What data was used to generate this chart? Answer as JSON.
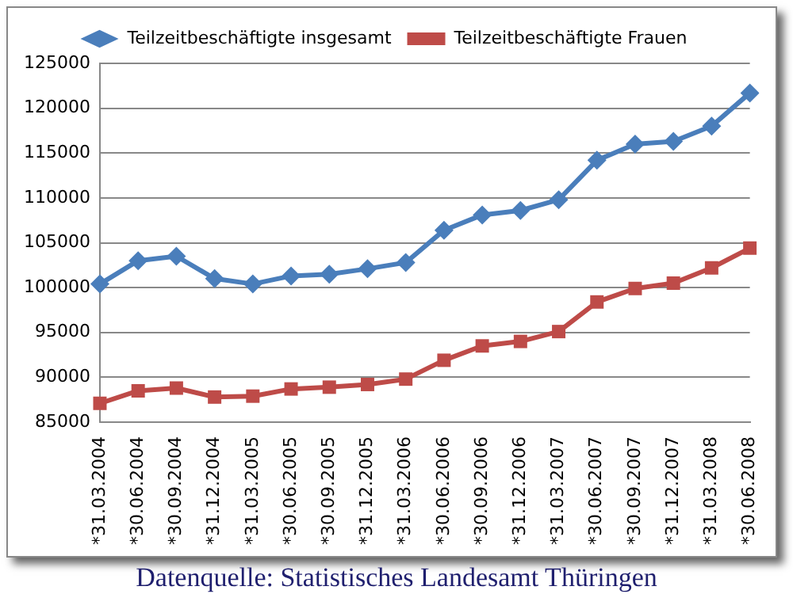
{
  "chart_data": {
    "type": "line",
    "categories": [
      "*31.03.2004",
      "*30.06.2004",
      "*30.09.2004",
      "*31.12.2004",
      "*31.03.2005",
      "*30.06.2005",
      "*30.09.2005",
      "*31.12.2005",
      "*31.03.2006",
      "*30.06.2006",
      "*30.09.2006",
      "*31.12.2006",
      "*31.03.2007",
      "*30.06.2007",
      "*30.09.2007",
      "*31.12.2007",
      "*31.03.2008",
      "*30.06.2008"
    ],
    "series": [
      {
        "name": "Teilzeitbeschäftigte insgesamt",
        "color": "#4a7ebb",
        "marker": "diamond",
        "values": [
          100400,
          103000,
          103500,
          101000,
          100400,
          101300,
          101500,
          102100,
          102800,
          106400,
          108100,
          108600,
          109800,
          114200,
          116000,
          116300,
          118000,
          121700
        ]
      },
      {
        "name": "Teilzeitbeschäftigte Frauen",
        "color": "#be4b48",
        "marker": "square",
        "values": [
          87100,
          88500,
          88800,
          87800,
          87900,
          88700,
          88900,
          89200,
          89800,
          91900,
          93500,
          94000,
          95100,
          98400,
          99900,
          100500,
          102200,
          104400
        ]
      }
    ],
    "ylim": [
      85000,
      125000
    ],
    "yticks": [
      85000,
      90000,
      95000,
      100000,
      105000,
      110000,
      115000,
      120000,
      125000
    ],
    "grid": "y",
    "legend": "top",
    "line_style": "solid",
    "annotations": [
      "Datenquelle: Statistisches Landesamt Thüringen"
    ]
  }
}
